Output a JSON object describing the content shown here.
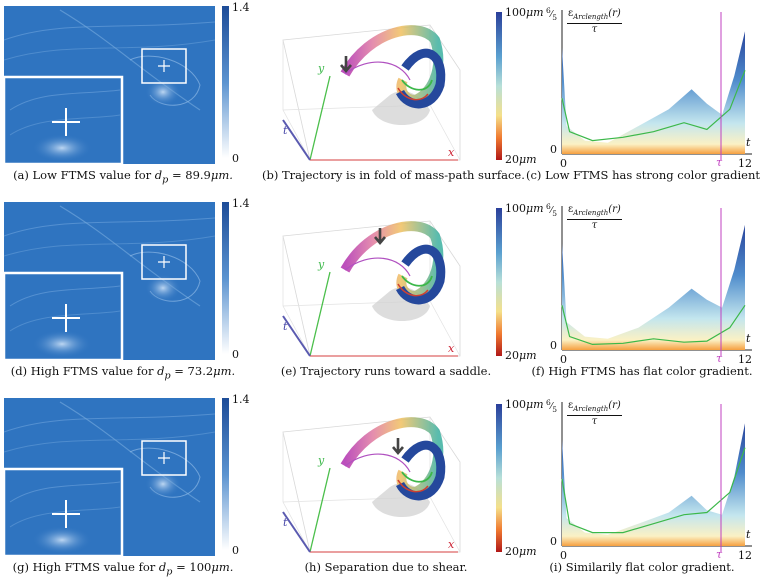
{
  "colorbar_ftms": {
    "max": "1.4",
    "min": "0"
  },
  "colorbar_dp": {
    "max": "100",
    "min": "20",
    "unit": "μm"
  },
  "rows": [
    {
      "ftms_caption": {
        "prefix": "(a) Low FTMS value for ",
        "var": "d",
        "sub": "p",
        "suffix": " = 89.9",
        "unit": "μm."
      },
      "traj_caption": "(b) Trajectory is in fold of mass-path surface.",
      "plot_caption": "(c) Low FTMS has strong color gradient."
    },
    {
      "ftms_caption": {
        "prefix": "(d) High FTMS value for ",
        "var": "d",
        "sub": "p",
        "suffix": " = 73.2",
        "unit": "μm."
      },
      "traj_caption": "(e) Trajectory runs toward a saddle.",
      "plot_caption": "(f) High FTMS has flat color gradient."
    },
    {
      "ftms_caption": {
        "prefix": "(g) High FTMS value for ",
        "var": "d",
        "sub": "p",
        "suffix": " = 100",
        "unit": "μm."
      },
      "traj_caption": "(h) Separation due to shear.",
      "plot_caption": "(i) Similarily flat color gradient."
    }
  ],
  "axes3d": {
    "x": "x",
    "y": "y",
    "t": "t"
  },
  "plot": {
    "y_label_symbol": "ε",
    "y_label_sub": "Arclength",
    "y_label_arg": "(r)",
    "y_label_den": "τ",
    "y_top_tick": "6/5",
    "y_top_num": "6",
    "y_top_den": "5",
    "y_zero": "0",
    "x_zero": "0",
    "x_tau": "τ",
    "x_max": "12",
    "x_axis": "t"
  },
  "colors": {
    "field_blue": "#2f74c0",
    "magenta": "#c040c0",
    "green": "#3cb84a",
    "cbar_top": "#1f4f9c"
  }
}
